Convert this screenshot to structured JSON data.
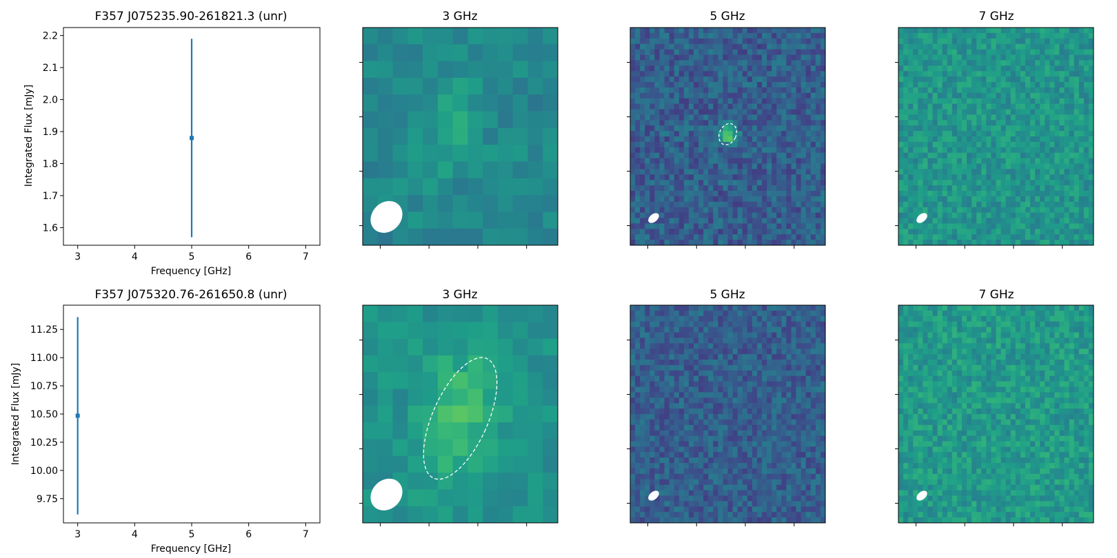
{
  "chart_data": [
    {
      "type": "scatter",
      "title": "F357 J075235.90-261821.3 (unr)",
      "xlabel": "Frequency [GHz]",
      "ylabel": "Integrated Flux [mJy]",
      "xlim": [
        2.75,
        7.25
      ],
      "ylim": [
        1.545,
        2.225
      ],
      "xticks": [
        "3",
        "4",
        "5",
        "6",
        "7"
      ],
      "yticks": [
        "1.6",
        "1.7",
        "1.8",
        "1.9",
        "2.0",
        "2.1",
        "2.2"
      ],
      "series": [
        {
          "x": [
            5
          ],
          "y": [
            1.88
          ],
          "yerr": [
            0.31
          ]
        }
      ],
      "color": "#1f77b4",
      "grid": false
    },
    {
      "type": "heatmap",
      "title": "3 GHz",
      "colormap": "viridis",
      "grid_size": [
        13,
        13
      ],
      "source_ellipse": false,
      "beam_ellipse": true
    },
    {
      "type": "heatmap",
      "title": "5 GHz",
      "colormap": "viridis",
      "grid_size": [
        40,
        40
      ],
      "source_ellipse": true,
      "beam_ellipse": true
    },
    {
      "type": "heatmap",
      "title": "7 GHz",
      "colormap": "viridis",
      "grid_size": [
        40,
        40
      ],
      "source_ellipse": false,
      "beam_ellipse": true
    },
    {
      "type": "scatter",
      "title": "F357 J075320.76-261650.8 (unr)",
      "xlabel": "Frequency [GHz]",
      "ylabel": "Integrated Flux [mJy]",
      "xlim": [
        2.75,
        7.25
      ],
      "ylim": [
        9.535,
        11.465
      ],
      "xticks": [
        "3",
        "4",
        "5",
        "6",
        "7"
      ],
      "yticks": [
        "9.75",
        "10.00",
        "10.25",
        "10.50",
        "10.75",
        "11.00",
        "11.25"
      ],
      "series": [
        {
          "x": [
            3
          ],
          "y": [
            10.485
          ],
          "yerr": [
            0.875
          ]
        }
      ],
      "color": "#1f77b4",
      "grid": false
    },
    {
      "type": "heatmap",
      "title": "3 GHz",
      "colormap": "viridis",
      "grid_size": [
        13,
        13
      ],
      "source_ellipse": true,
      "beam_ellipse": true
    },
    {
      "type": "heatmap",
      "title": "5 GHz",
      "colormap": "viridis",
      "grid_size": [
        40,
        40
      ],
      "source_ellipse": false,
      "beam_ellipse": true
    },
    {
      "type": "heatmap",
      "title": "7 GHz",
      "colormap": "viridis",
      "grid_size": [
        40,
        40
      ],
      "source_ellipse": false,
      "beam_ellipse": true
    }
  ]
}
